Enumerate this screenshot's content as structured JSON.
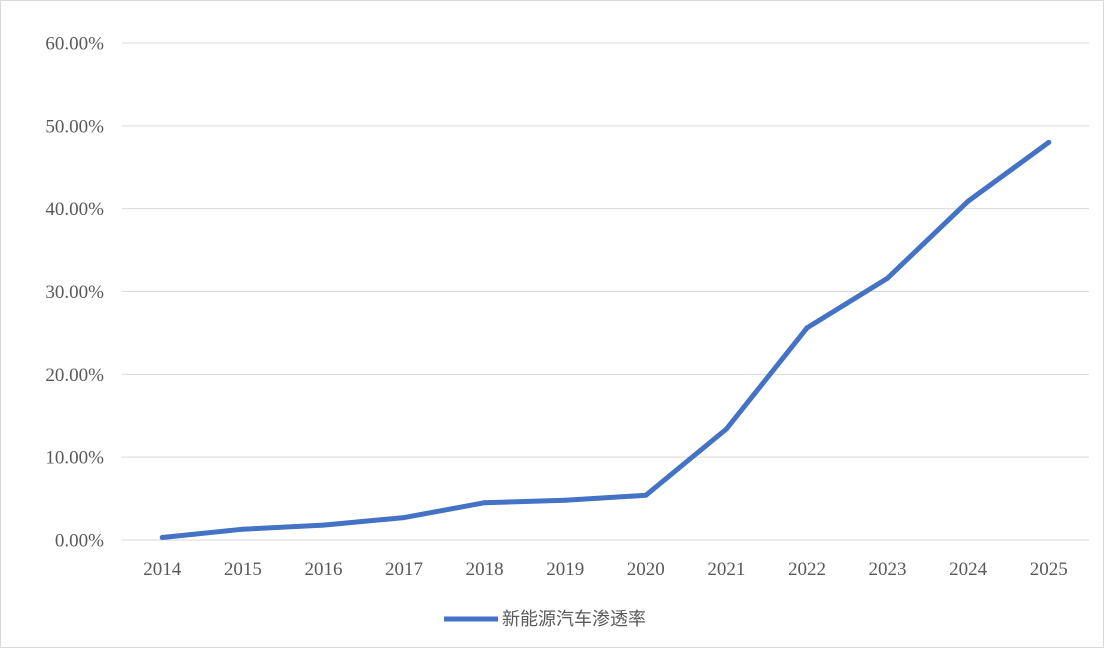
{
  "chart_data": {
    "type": "line",
    "title": "",
    "xlabel": "",
    "ylabel": "",
    "categories": [
      "2014",
      "2015",
      "2016",
      "2017",
      "2018",
      "2019",
      "2020",
      "2021",
      "2022",
      "2023",
      "2024",
      "2025"
    ],
    "series": [
      {
        "name": "新能源汽车渗透率",
        "color": "#4472C4",
        "values": [
          0.3,
          1.3,
          1.8,
          2.7,
          4.5,
          4.8,
          5.4,
          13.4,
          25.6,
          31.6,
          40.9,
          48.0
        ]
      }
    ],
    "ylim": [
      0,
      60
    ],
    "yticks": [
      0,
      10,
      20,
      30,
      40,
      50,
      60
    ],
    "ytick_labels": [
      "0.00%",
      "10.00%",
      "20.00%",
      "30.00%",
      "40.00%",
      "50.00%",
      "60.00%"
    ],
    "grid": true,
    "legend_position": "bottom"
  }
}
